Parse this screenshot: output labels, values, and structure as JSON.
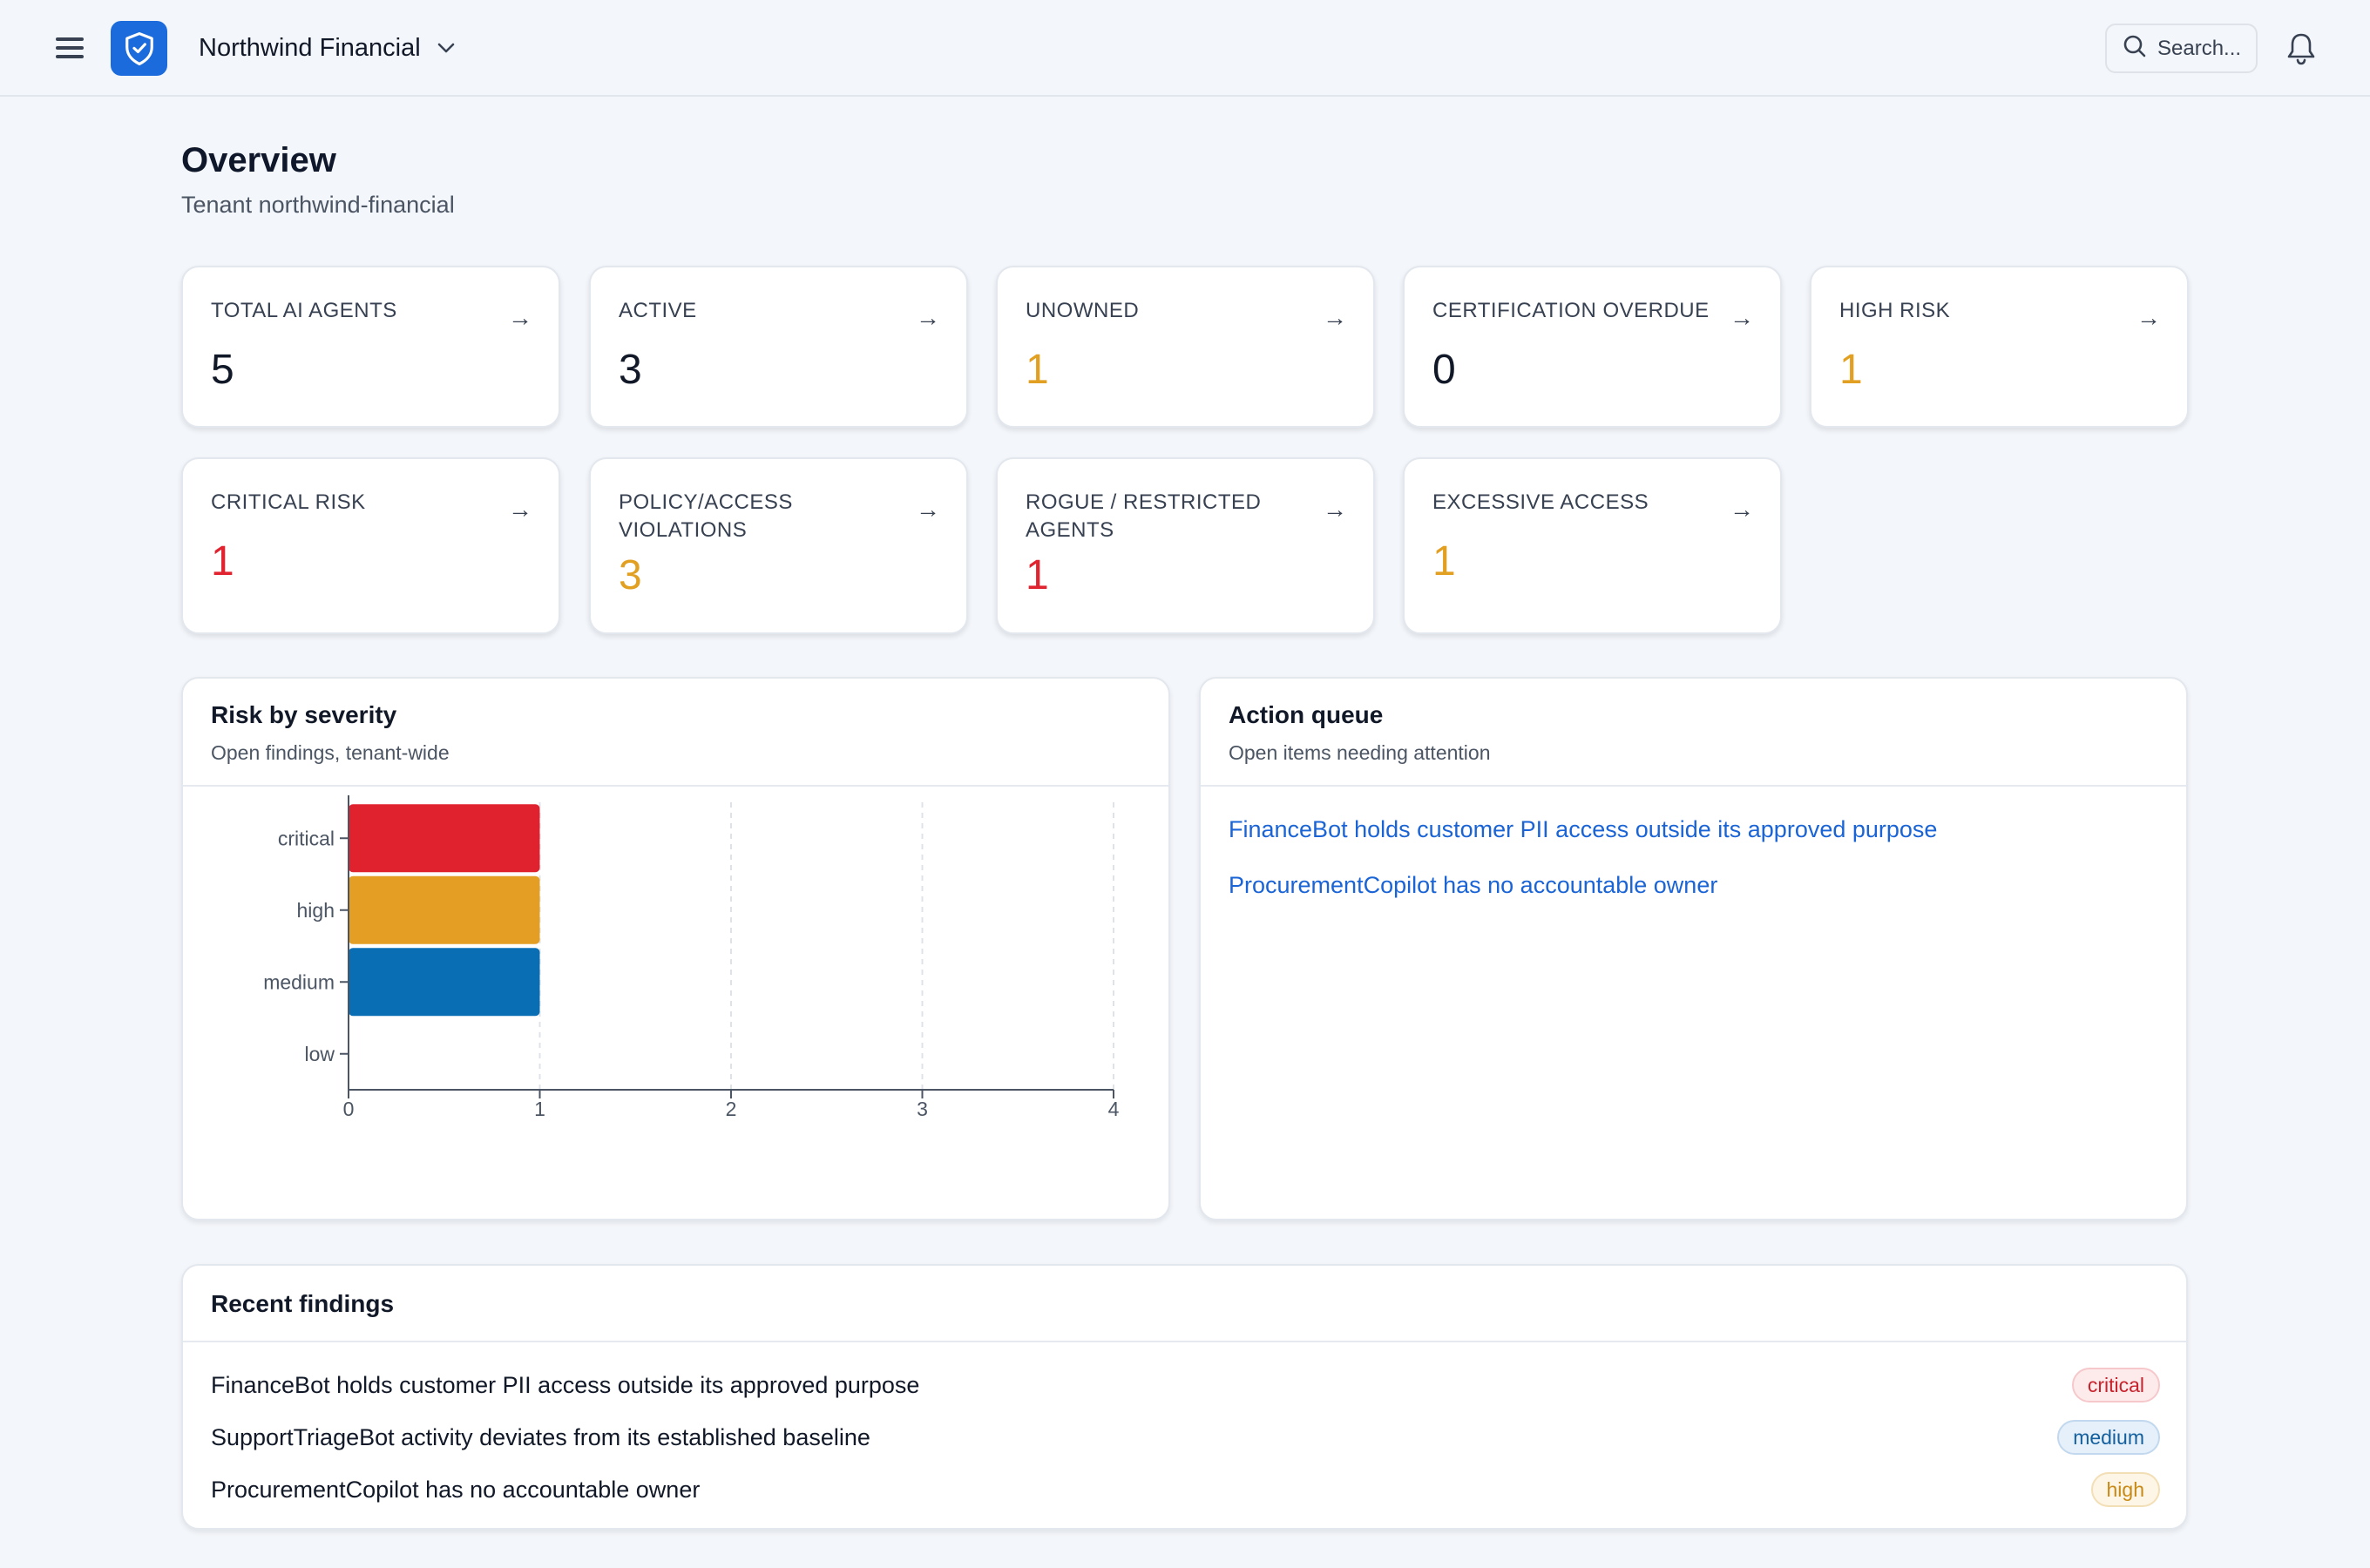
{
  "header": {
    "tenant_name": "Northwind Financial",
    "search_placeholder": "Search..."
  },
  "page": {
    "title": "Overview",
    "subtitle": "Tenant northwind-financial"
  },
  "stats": [
    {
      "label": "TOTAL AI AGENTS",
      "value": "5",
      "color": "#111827"
    },
    {
      "label": "ACTIVE",
      "value": "3",
      "color": "#111827"
    },
    {
      "label": "UNOWNED",
      "value": "1",
      "color": "#e2a023"
    },
    {
      "label": "CERTIFICATION OVERDUE",
      "value": "0",
      "color": "#111827"
    },
    {
      "label": "HIGH RISK",
      "value": "1",
      "color": "#e2a023"
    },
    {
      "label": "CRITICAL RISK",
      "value": "1",
      "color": "#e0232f"
    },
    {
      "label": "POLICY/ACCESS VIOLATIONS",
      "value": "3",
      "color": "#e2a023"
    },
    {
      "label": "ROGUE / RESTRICTED AGENTS",
      "value": "1",
      "color": "#e0232f"
    },
    {
      "label": "EXCESSIVE ACCESS",
      "value": "1",
      "color": "#e2a023"
    }
  ],
  "stat_arrow": "→",
  "risk_panel": {
    "title": "Risk by severity",
    "subtitle": "Open findings, tenant-wide"
  },
  "chart_data": {
    "type": "bar",
    "orientation": "horizontal",
    "categories": [
      "critical",
      "high",
      "medium",
      "low"
    ],
    "values": [
      1,
      1,
      1,
      0
    ],
    "colors": [
      "#e0222f",
      "#e39e23",
      "#0a6eb5",
      "#0a6eb5"
    ],
    "xlim": [
      0,
      4
    ],
    "xticks": [
      0,
      1,
      2,
      3,
      4
    ],
    "grid": "vertical dashed"
  },
  "action_queue": {
    "title": "Action queue",
    "subtitle": "Open items needing attention",
    "items": [
      "FinanceBot holds customer PII access outside its approved purpose",
      "ProcurementCopilot has no accountable owner"
    ]
  },
  "recent_findings": {
    "title": "Recent findings",
    "items": [
      {
        "text": "FinanceBot holds customer PII access outside its approved purpose",
        "severity": "critical",
        "bg": "#fdebec",
        "fg": "#c8222c",
        "border": "#f6c8cb"
      },
      {
        "text": "SupportTriageBot activity deviates from its established baseline",
        "severity": "medium",
        "bg": "#e6f0fa",
        "fg": "#14609f",
        "border": "#c2d8ee"
      },
      {
        "text": "ProcurementCopilot has no accountable owner",
        "severity": "high",
        "bg": "#fdf5e6",
        "fg": "#c88a15",
        "border": "#f3dfb6"
      }
    ]
  }
}
